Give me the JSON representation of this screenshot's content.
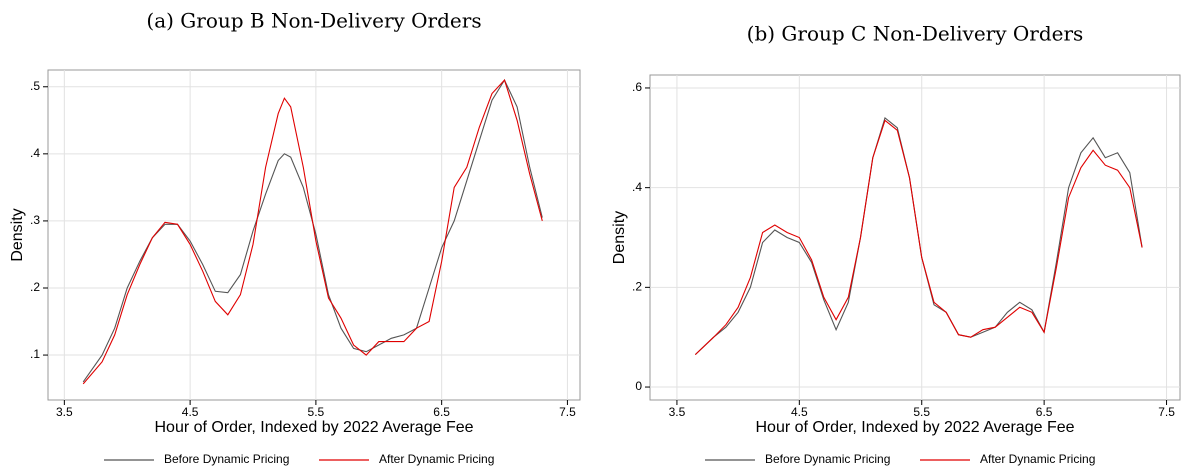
{
  "chart_data": [
    {
      "type": "line",
      "title": "(a) Group B Non-Delivery Orders",
      "x_label": "Hour of Order, Indexed by 2022 Average Fee",
      "y_label": "Density",
      "x": [
        3.65,
        3.8,
        3.9,
        4.0,
        4.1,
        4.2,
        4.3,
        4.4,
        4.5,
        4.6,
        4.7,
        4.8,
        4.9,
        5.0,
        5.1,
        5.2,
        5.25,
        5.3,
        5.4,
        5.5,
        5.6,
        5.7,
        5.8,
        5.9,
        6.0,
        6.1,
        6.2,
        6.3,
        6.4,
        6.5,
        6.6,
        6.7,
        6.8,
        6.9,
        7.0,
        7.1,
        7.2,
        7.3
      ],
      "series": [
        {
          "name": "Before Dynamic Pricing",
          "color": "#555555",
          "values": [
            0.06,
            0.1,
            0.14,
            0.2,
            0.24,
            0.275,
            0.295,
            0.295,
            0.27,
            0.235,
            0.195,
            0.193,
            0.22,
            0.285,
            0.34,
            0.39,
            0.4,
            0.395,
            0.35,
            0.28,
            0.19,
            0.14,
            0.11,
            0.105,
            0.115,
            0.125,
            0.13,
            0.14,
            0.2,
            0.26,
            0.3,
            0.36,
            0.42,
            0.48,
            0.51,
            0.47,
            0.38,
            0.305
          ]
        },
        {
          "name": "After Dynamic Pricing",
          "color": "#e00000",
          "values": [
            0.057,
            0.09,
            0.13,
            0.19,
            0.235,
            0.275,
            0.298,
            0.295,
            0.265,
            0.225,
            0.18,
            0.16,
            0.19,
            0.265,
            0.38,
            0.46,
            0.483,
            0.47,
            0.38,
            0.27,
            0.185,
            0.155,
            0.115,
            0.1,
            0.12,
            0.12,
            0.12,
            0.14,
            0.15,
            0.24,
            0.35,
            0.38,
            0.44,
            0.49,
            0.51,
            0.45,
            0.37,
            0.3
          ]
        }
      ],
      "xlim": [
        3.37,
        7.6
      ],
      "ylim": [
        0.033,
        0.525
      ],
      "xticks": [
        3.5,
        4.5,
        5.5,
        6.5,
        7.5
      ],
      "yticks": [
        {
          "value": 0.1,
          "label": ".1"
        },
        {
          "value": 0.2,
          "label": ".2"
        },
        {
          "value": 0.3,
          "label": ".3"
        },
        {
          "value": 0.4,
          "label": ".4"
        },
        {
          "value": 0.5,
          "label": ".5"
        }
      ],
      "grid": true
    },
    {
      "type": "line",
      "title": "(b) Group C Non-Delivery Orders",
      "x_label": "Hour of Order, Indexed by 2022 Average Fee",
      "y_label": "Density",
      "x": [
        3.65,
        3.8,
        3.9,
        4.0,
        4.1,
        4.2,
        4.3,
        4.4,
        4.5,
        4.6,
        4.7,
        4.8,
        4.9,
        5.0,
        5.1,
        5.2,
        5.3,
        5.4,
        5.5,
        5.6,
        5.7,
        5.8,
        5.9,
        6.0,
        6.1,
        6.2,
        6.3,
        6.4,
        6.5,
        6.6,
        6.7,
        6.8,
        6.9,
        7.0,
        7.1,
        7.2,
        7.3
      ],
      "series": [
        {
          "name": "Before Dynamic Pricing",
          "color": "#555555",
          "values": [
            0.065,
            0.1,
            0.12,
            0.15,
            0.2,
            0.29,
            0.315,
            0.3,
            0.29,
            0.25,
            0.175,
            0.115,
            0.17,
            0.3,
            0.46,
            0.54,
            0.52,
            0.42,
            0.26,
            0.165,
            0.15,
            0.105,
            0.1,
            0.11,
            0.12,
            0.15,
            0.17,
            0.155,
            0.11,
            0.25,
            0.4,
            0.47,
            0.5,
            0.46,
            0.47,
            0.43,
            0.28
          ]
        },
        {
          "name": "After Dynamic Pricing",
          "color": "#e00000",
          "values": [
            0.065,
            0.1,
            0.125,
            0.16,
            0.22,
            0.31,
            0.325,
            0.31,
            0.3,
            0.255,
            0.18,
            0.135,
            0.18,
            0.3,
            0.46,
            0.535,
            0.515,
            0.42,
            0.26,
            0.17,
            0.15,
            0.105,
            0.1,
            0.115,
            0.12,
            0.14,
            0.16,
            0.15,
            0.11,
            0.24,
            0.38,
            0.44,
            0.475,
            0.445,
            0.435,
            0.4,
            0.28
          ]
        }
      ],
      "xlim": [
        3.28,
        7.61
      ],
      "ylim": [
        -0.026,
        0.626
      ],
      "xticks": [
        3.5,
        4.5,
        5.5,
        6.5,
        7.5
      ],
      "yticks": [
        0,
        {
          "value": 0.2,
          "label": ".2"
        },
        {
          "value": 0.4,
          "label": ".4"
        },
        {
          "value": 0.6,
          "label": ".6"
        }
      ],
      "grid": true
    }
  ]
}
